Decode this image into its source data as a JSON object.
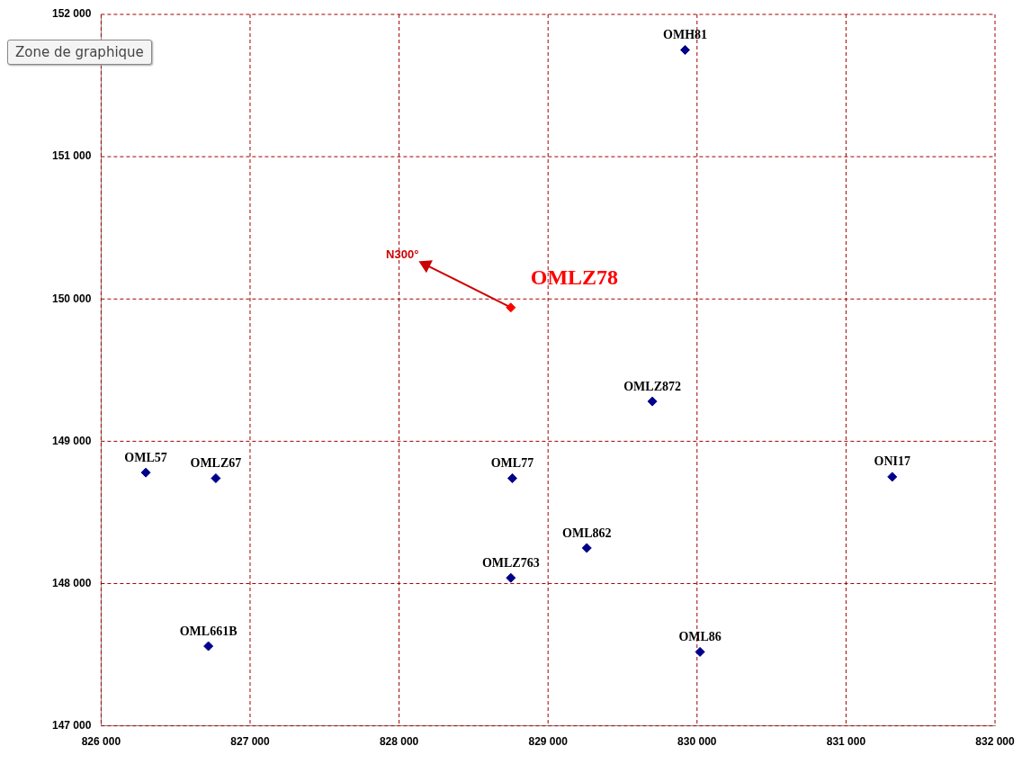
{
  "chart_data": {
    "type": "scatter",
    "marker": "diamond",
    "grid": true,
    "legend": false,
    "xlim": [
      826000,
      832000
    ],
    "xticks": [
      {
        "value": 826000,
        "label": "826 000"
      },
      {
        "value": 827000,
        "label": "827 000"
      },
      {
        "value": 828000,
        "label": "828 000"
      },
      {
        "value": 829000,
        "label": "829 000"
      },
      {
        "value": 830000,
        "label": "830 000"
      },
      {
        "value": 831000,
        "label": "831 000"
      },
      {
        "value": 832000,
        "label": "832 000"
      }
    ],
    "ylim": [
      147000,
      152000
    ],
    "yticks": [
      {
        "value": 147000,
        "label": "147 000"
      },
      {
        "value": 148000,
        "label": "148 000"
      },
      {
        "value": 149000,
        "label": "149 000"
      },
      {
        "value": 150000,
        "label": "150 000"
      },
      {
        "value": 151000,
        "label": "151 000"
      },
      {
        "value": 152000,
        "label": "152 000"
      }
    ],
    "series": [
      {
        "color": "#00008b",
        "x": [
          829920,
          829700,
          826300,
          826770,
          828760,
          831310,
          829260,
          828750,
          826720,
          830020
        ],
        "values": [
          151750,
          149280,
          148780,
          148740,
          148740,
          148750,
          148250,
          148040,
          147560,
          147520
        ],
        "value_labels": [
          "OMH81",
          "OMLZ872",
          "OML57",
          "OMLZ67",
          "OML77",
          "ONI17",
          "OML862",
          "OMLZ763",
          "OML661B",
          "OML86"
        ]
      },
      {
        "color": "#ff0000",
        "x": [
          828750
        ],
        "values": [
          149940
        ],
        "value_labels": [
          "OMLZ78"
        ]
      },
      {
        "type": "line",
        "marker": "triangle",
        "color": "#cc0000",
        "x": [
          828750,
          828180
        ],
        "values": [
          149940,
          150240
        ],
        "value_labels": [
          null,
          "N300°"
        ]
      }
    ],
    "annotations": [
      "Zone de graphique"
    ]
  }
}
